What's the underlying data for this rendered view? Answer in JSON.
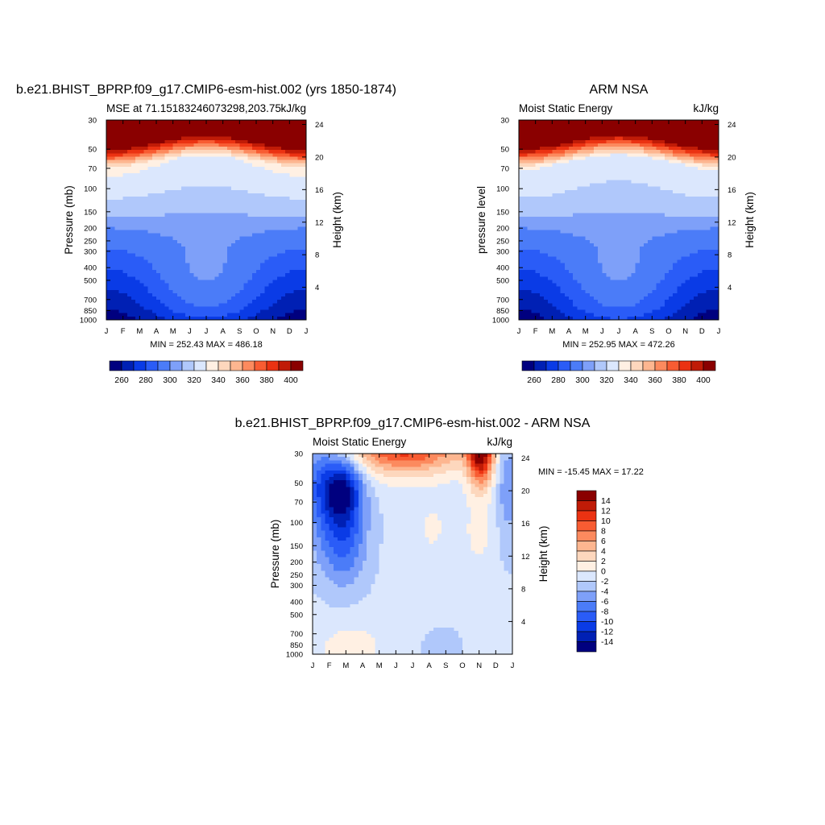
{
  "figure": {
    "colors": {
      "palette": [
        "#00007f",
        "#0020b4",
        "#0a3be6",
        "#2a5cf7",
        "#4b7cf8",
        "#7ea0f9",
        "#b0c8fb",
        "#dbe7fd",
        "#fff0e3",
        "#fdd7bd",
        "#fdb690",
        "#fc8a5e",
        "#f85c32",
        "#eb3212",
        "#c01b07",
        "#8a0000"
      ],
      "axis": "#000000",
      "background": "#ffffff"
    }
  },
  "chart_data": [
    {
      "id": "model",
      "type": "heatmap",
      "main_title": "b.e21.BHIST_BPRP.f09_g17.CMIP6-esm-hist.002 (yrs 1850-1874)",
      "left_title": "MSE at 71.15183246073298,203.75",
      "right_title": "kJ/kg",
      "ylabel": "Pressure (mb)",
      "ylabel_right": "Height (km)",
      "x_ticks": [
        "J",
        "F",
        "M",
        "A",
        "M",
        "J",
        "J",
        "A",
        "S",
        "O",
        "N",
        "D",
        "J"
      ],
      "y_ticks": [
        "30",
        "50",
        "70",
        "100",
        "150",
        "200",
        "250",
        "300",
        "400",
        "500",
        "700",
        "850",
        "1000"
      ],
      "y_ticks_right": [
        "24",
        "20",
        "16",
        "12",
        "8",
        "4"
      ],
      "y_scale": "log (pressure), decreasing upward",
      "stats": "MIN = 252.43 MAX = 486.18",
      "min": 252.43,
      "max": 486.18,
      "colorbar": {
        "orientation": "horizontal",
        "labels": [
          "260",
          "280",
          "300",
          "320",
          "340",
          "360",
          "380",
          "400"
        ],
        "levels": [
          250,
          260,
          270,
          280,
          290,
          300,
          310,
          320,
          330,
          340,
          350,
          360,
          370,
          380,
          390,
          400
        ]
      },
      "field_description": "Monthly-mean moist static energy: ~255-300 near surface, minimum in winter, lowest-level values rising in summer; steep increase above 200 mb to >400 kJ/kg above ~70 mb"
    },
    {
      "id": "obs",
      "type": "heatmap",
      "main_title": "ARM NSA",
      "left_title": "Moist Static Energy",
      "right_title": "kJ/kg",
      "ylabel": "pressure level",
      "ylabel_right": "Height (km)",
      "x_ticks": [
        "J",
        "F",
        "M",
        "A",
        "M",
        "J",
        "J",
        "A",
        "S",
        "O",
        "N",
        "D",
        "J"
      ],
      "y_ticks": [
        "30",
        "50",
        "70",
        "100",
        "150",
        "200",
        "250",
        "300",
        "400",
        "500",
        "700",
        "850",
        "1000"
      ],
      "y_ticks_right": [
        "24",
        "20",
        "16",
        "12",
        "8",
        "4"
      ],
      "y_scale": "log (pressure), decreasing upward",
      "stats": "MIN = 252.95 MAX = 472.26",
      "min": 252.95,
      "max": 472.26,
      "colorbar": {
        "orientation": "horizontal",
        "labels": [
          "260",
          "280",
          "300",
          "320",
          "340",
          "360",
          "380",
          "400"
        ],
        "levels": [
          250,
          260,
          270,
          280,
          290,
          300,
          310,
          320,
          330,
          340,
          350,
          360,
          370,
          380,
          390,
          400
        ]
      }
    },
    {
      "id": "diff",
      "type": "heatmap",
      "main_title": "b.e21.BHIST_BPRP.f09_g17.CMIP6-esm-hist.002 - ARM NSA",
      "left_title": "Moist Static Energy",
      "right_title": "kJ/kg",
      "ylabel": "Pressure (mb)",
      "ylabel_right": "Height (km)",
      "x_ticks": [
        "J",
        "F",
        "M",
        "A",
        "M",
        "J",
        "J",
        "A",
        "S",
        "O",
        "N",
        "D",
        "J"
      ],
      "y_ticks": [
        "30",
        "50",
        "70",
        "100",
        "150",
        "200",
        "250",
        "300",
        "400",
        "500",
        "700",
        "850",
        "1000"
      ],
      "y_ticks_right": [
        "24",
        "20",
        "16",
        "12",
        "8",
        "4"
      ],
      "y_scale": "log (pressure), decreasing upward",
      "stats": "MIN = -15.45 MAX =  17.22",
      "min": -15.45,
      "max": 17.22,
      "colorbar": {
        "orientation": "vertical",
        "labels": [
          "14",
          "12",
          "10",
          "8",
          "6",
          "4",
          "2",
          "0",
          "-2",
          "-4",
          "-6",
          "-8",
          "-10",
          "-12",
          "-14"
        ],
        "levels": [
          -16,
          -14,
          -12,
          -10,
          -8,
          -6,
          -4,
          -2,
          0,
          2,
          4,
          6,
          8,
          10,
          12,
          14,
          16
        ]
      },
      "field_description": "Model minus observations: strong negative (-14) near 50 mb in Feb, negative column Jan-Mar 30-250 mb, positive (+4 to +16) above 40 mb Apr-Aug and Nov, weak negative elsewhere, weak positive near surface"
    }
  ]
}
